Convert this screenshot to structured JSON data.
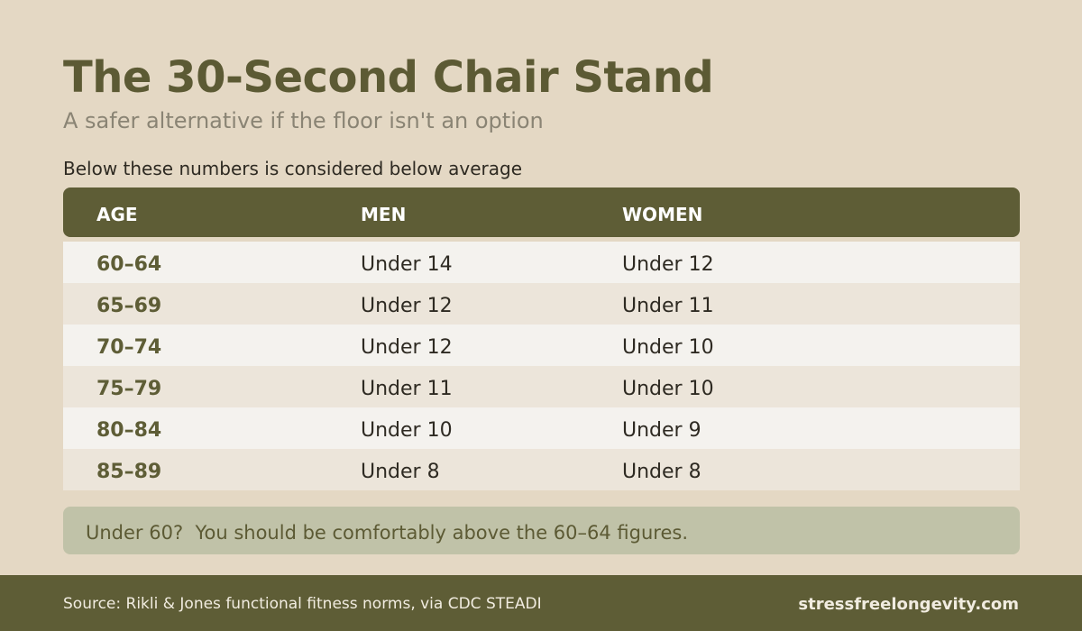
{
  "title": "The 30-Second Chair Stand",
  "subtitle": "A safer alternative if the floor isn't an option",
  "section_label": "Below these numbers is considered below average",
  "table": {
    "headers": {
      "age": "AGE",
      "men": "MEN",
      "women": "WOMEN"
    },
    "rows": [
      {
        "age": "60–64",
        "men": "Under 14",
        "women": "Under 12"
      },
      {
        "age": "65–69",
        "men": "Under 12",
        "women": "Under 11"
      },
      {
        "age": "70–74",
        "men": "Under 12",
        "women": "Under 10"
      },
      {
        "age": "75–79",
        "men": "Under 11",
        "women": "Under 10"
      },
      {
        "age": "80–84",
        "men": "Under 10",
        "women": "Under 9"
      },
      {
        "age": "85–89",
        "men": "Under 8",
        "women": "Under 8"
      }
    ]
  },
  "note": "Under 60?  You should be comfortably above the 60–64 figures.",
  "footer": {
    "source": "Source: Rikli & Jones functional fitness norms, via CDC STEADI",
    "site": "stressfreelongevity.com"
  },
  "colors": {
    "background": "#e4d8c4",
    "accent": "#5e5d36",
    "title": "#5c5a34",
    "note_background": "#c0c2a8"
  }
}
